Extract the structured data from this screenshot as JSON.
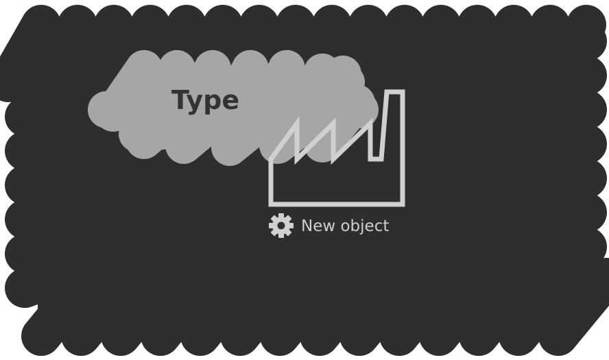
{
  "diagram": {
    "type_label": "Type",
    "object_label": "New object",
    "object_icon": "factory-icon",
    "status_icon": "gear-icon",
    "colors": {
      "background_scribble": "#2e2e2e",
      "type_scribble": "#a6a6a6",
      "type_text": "#333333",
      "icon_stroke": "#d0d0d0",
      "label_text": "#cfcfcf"
    }
  }
}
